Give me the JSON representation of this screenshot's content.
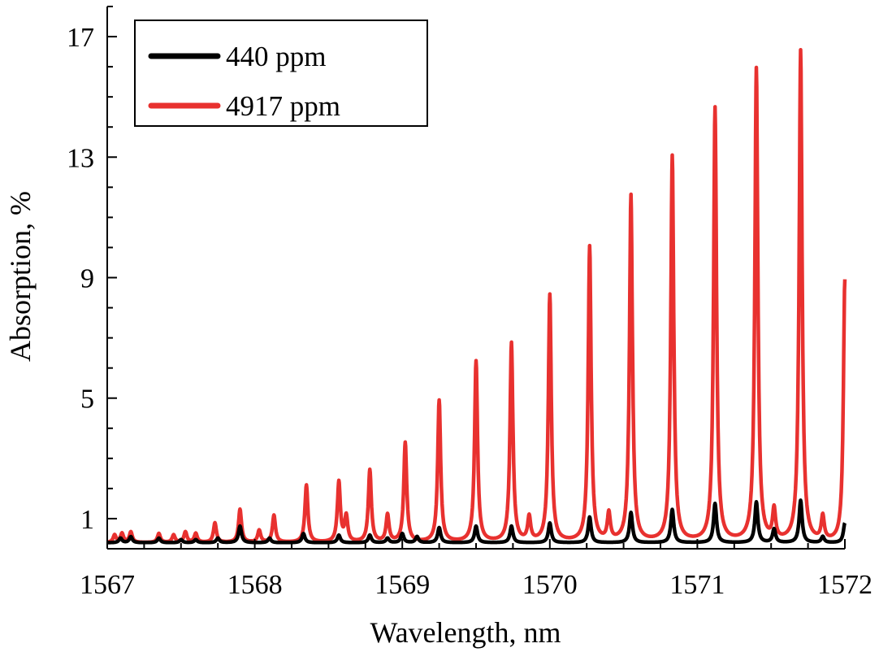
{
  "chart_data": {
    "type": "line",
    "xlabel": "Wavelength, nm",
    "ylabel": "Absorption, %",
    "xlim": [
      1567,
      1572
    ],
    "ylim": [
      0,
      18
    ],
    "xticks": [
      "1567",
      "1568",
      "1569",
      "1570",
      "1571",
      "1572"
    ],
    "xtick_values": [
      1567,
      1568,
      1569,
      1570,
      1571,
      1572
    ],
    "yticks": [
      "1",
      "5",
      "9",
      "13",
      "17"
    ],
    "ytick_values": [
      1,
      5,
      9,
      13,
      17
    ],
    "grid": false,
    "legend_position": "top-left",
    "series": [
      {
        "name": "440 ppm",
        "color": "#000000",
        "baseline": 0.2,
        "peaks": [
          {
            "x": 1567.09,
            "y": 0.35
          },
          {
            "x": 1567.16,
            "y": 0.4
          },
          {
            "x": 1567.35,
            "y": 0.35
          },
          {
            "x": 1567.5,
            "y": 0.3
          },
          {
            "x": 1567.6,
            "y": 0.3
          },
          {
            "x": 1567.75,
            "y": 0.35
          },
          {
            "x": 1567.9,
            "y": 0.75
          },
          {
            "x": 1568.1,
            "y": 0.35
          },
          {
            "x": 1568.33,
            "y": 0.5
          },
          {
            "x": 1568.57,
            "y": 0.45
          },
          {
            "x": 1568.78,
            "y": 0.45
          },
          {
            "x": 1568.9,
            "y": 0.35
          },
          {
            "x": 1569.0,
            "y": 0.5
          },
          {
            "x": 1569.1,
            "y": 0.4
          },
          {
            "x": 1569.25,
            "y": 0.7
          },
          {
            "x": 1569.5,
            "y": 0.75
          },
          {
            "x": 1569.74,
            "y": 0.75
          },
          {
            "x": 1570.0,
            "y": 0.85
          },
          {
            "x": 1570.27,
            "y": 1.05
          },
          {
            "x": 1570.55,
            "y": 1.2
          },
          {
            "x": 1570.83,
            "y": 1.3
          },
          {
            "x": 1571.12,
            "y": 1.5
          },
          {
            "x": 1571.4,
            "y": 1.55
          },
          {
            "x": 1571.52,
            "y": 0.65
          },
          {
            "x": 1571.7,
            "y": 1.6
          },
          {
            "x": 1571.85,
            "y": 0.4
          },
          {
            "x": 1572.0,
            "y": 0.85
          }
        ]
      },
      {
        "name": "4917 ppm",
        "color": "#e8312f",
        "baseline": 0.2,
        "peaks": [
          {
            "x": 1567.05,
            "y": 0.45
          },
          {
            "x": 1567.1,
            "y": 0.5
          },
          {
            "x": 1567.16,
            "y": 0.55
          },
          {
            "x": 1567.35,
            "y": 0.5
          },
          {
            "x": 1567.45,
            "y": 0.45
          },
          {
            "x": 1567.53,
            "y": 0.55
          },
          {
            "x": 1567.6,
            "y": 0.5
          },
          {
            "x": 1567.73,
            "y": 0.85
          },
          {
            "x": 1567.9,
            "y": 1.3
          },
          {
            "x": 1568.03,
            "y": 0.6
          },
          {
            "x": 1568.13,
            "y": 1.1
          },
          {
            "x": 1568.35,
            "y": 2.1
          },
          {
            "x": 1568.57,
            "y": 2.2
          },
          {
            "x": 1568.62,
            "y": 1.05
          },
          {
            "x": 1568.78,
            "y": 2.6
          },
          {
            "x": 1568.9,
            "y": 1.1
          },
          {
            "x": 1569.02,
            "y": 3.5
          },
          {
            "x": 1569.25,
            "y": 4.9
          },
          {
            "x": 1569.5,
            "y": 6.2
          },
          {
            "x": 1569.74,
            "y": 6.8
          },
          {
            "x": 1569.86,
            "y": 1.0
          },
          {
            "x": 1570.0,
            "y": 8.4
          },
          {
            "x": 1570.27,
            "y": 10.0
          },
          {
            "x": 1570.4,
            "y": 1.1
          },
          {
            "x": 1570.55,
            "y": 11.7
          },
          {
            "x": 1570.83,
            "y": 13.0
          },
          {
            "x": 1571.12,
            "y": 14.6
          },
          {
            "x": 1571.4,
            "y": 15.9
          },
          {
            "x": 1571.52,
            "y": 1.2
          },
          {
            "x": 1571.7,
            "y": 16.5
          },
          {
            "x": 1571.85,
            "y": 1.0
          },
          {
            "x": 1572.0,
            "y": 8.9
          }
        ]
      }
    ]
  }
}
